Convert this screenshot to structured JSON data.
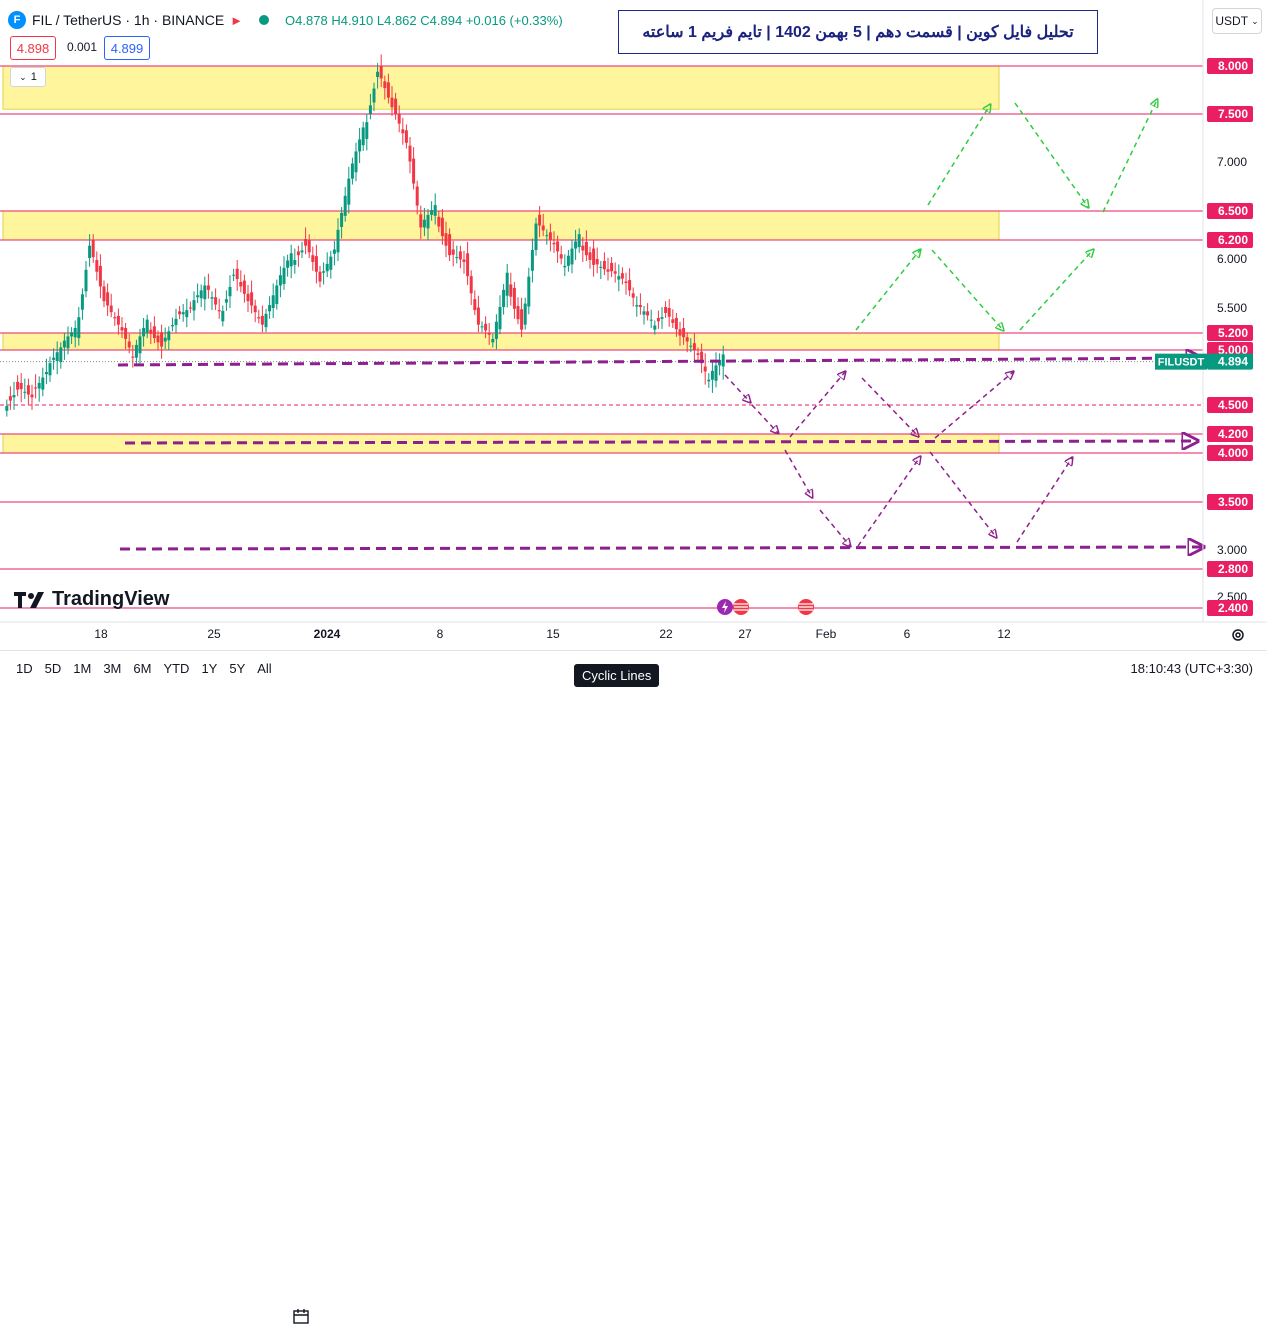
{
  "header": {
    "symbol": "FIL / TetherUS · 1h · BINANCE",
    "coin_glyph": "F",
    "open": "O4.878",
    "high": "H4.910",
    "low": "L4.862",
    "close": "C4.894",
    "change": "+0.016 (+0.33%)",
    "sell_price": "4.898",
    "spread": "0.001",
    "buy_price": "4.899",
    "indicator_count": "1",
    "currency_button": "USDT",
    "colors": {
      "up": "#089981",
      "down": "#f23645",
      "zone": "#fff59d",
      "level_line": "#e91e63",
      "arrow_green": "#2ecc40",
      "arrow_purple": "#8e1f8e"
    }
  },
  "annotation": "تحلیل فایل کوین | قسمت دهم | 5 بهمن 1402 | تایم فریم 1 ساعته",
  "watermark": "TradingView",
  "symbol_tag": "FILUSDT",
  "bottom_bar": {
    "ranges": [
      "1D",
      "5D",
      "1M",
      "3M",
      "6M",
      "YTD",
      "1Y",
      "5Y",
      "All"
    ],
    "clock": "18:10:43 (UTC+3:30)",
    "tooltip": "Cyclic Lines"
  },
  "chart_data": {
    "type": "line",
    "title": "",
    "xlabel": "",
    "ylabel": "",
    "ylim": [
      2.3,
      8.6
    ],
    "x_ticks": [
      "18",
      "25",
      "2024",
      "8",
      "15",
      "22",
      "27",
      "Feb",
      "6",
      "12"
    ],
    "y_ticks": [
      "7.000",
      "6.000",
      "5.500",
      "3.000",
      "2.500"
    ],
    "level_labels": [
      "8.000",
      "7.500",
      "6.500",
      "6.200",
      "5.200",
      "5.000",
      "4.500",
      "4.200",
      "4.000",
      "3.500",
      "2.800",
      "2.400"
    ],
    "last_price": "4.894",
    "zones": [
      [
        7.55,
        8.0
      ],
      [
        6.2,
        6.5
      ],
      [
        5.0,
        5.2
      ],
      [
        4.0,
        4.2
      ]
    ],
    "series": [
      {
        "values": [
          4.5,
          4.7,
          4.6,
          4.8,
          5.0,
          5.2,
          6.2,
          5.6,
          5.3,
          4.9,
          5.3,
          5.1,
          5.4,
          5.5,
          5.7,
          5.4,
          5.9,
          5.6,
          5.3,
          5.7,
          6.0,
          6.2,
          5.8,
          6.1,
          6.8,
          7.3,
          8.0,
          7.6,
          7.2,
          6.3,
          6.5,
          6.1,
          6.0,
          5.3,
          5.1,
          5.8,
          5.3,
          6.4,
          6.2,
          5.9,
          6.2,
          6.0,
          5.9,
          5.8,
          5.5,
          5.3,
          5.5,
          5.2,
          5.0,
          4.7,
          4.9
        ]
      }
    ]
  }
}
